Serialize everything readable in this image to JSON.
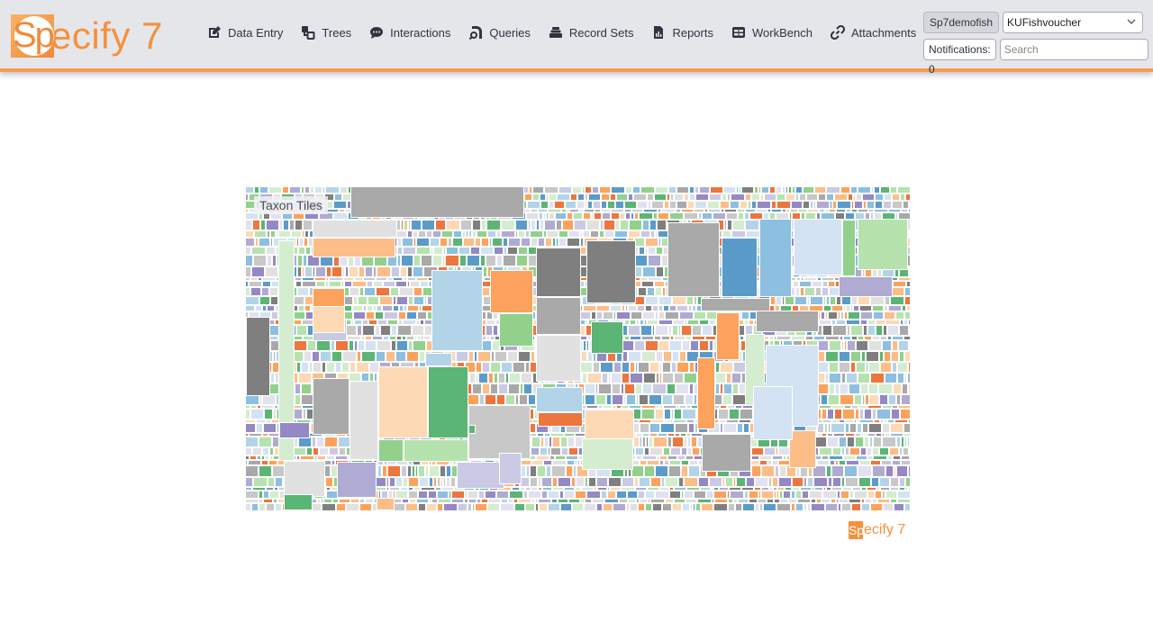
{
  "app": {
    "logo_prefix": "Sp",
    "logo_suffix": "ecify 7",
    "brand_color": "#f5913d"
  },
  "nav": {
    "items": [
      {
        "label": "Data Entry",
        "icon": "pencil-square-icon"
      },
      {
        "label": "Trees",
        "icon": "tree-nodes-icon"
      },
      {
        "label": "Interactions",
        "icon": "chat-bubble-icon"
      },
      {
        "label": "Queries",
        "icon": "search-document-icon"
      },
      {
        "label": "Record Sets",
        "icon": "stack-icon"
      },
      {
        "label": "Reports",
        "icon": "bar-chart-document-icon"
      },
      {
        "label": "WorkBench",
        "icon": "table-icon"
      },
      {
        "label": "Attachments",
        "icon": "link-icon"
      }
    ]
  },
  "user": {
    "username": "Sp7demofish",
    "collection": "KUFishvoucher",
    "notifications": "Notifications: 0",
    "search_placeholder": "Search"
  },
  "treemap": {
    "title": "Taxon Tiles",
    "palette": {
      "blue_dark": "#5b9bc9",
      "blue": "#8cbfe0",
      "blue_light": "#b3d4e8",
      "blue_pale": "#d3e3f3",
      "orange_dark": "#ec763d",
      "orange": "#fda25c",
      "orange_light": "#fdbd87",
      "orange_pale": "#fdd9b5",
      "green_dark": "#5bb574",
      "green": "#91d18c",
      "green_light": "#b6e2ae",
      "green_pale": "#d4edd0",
      "purple_dark": "#9489c4",
      "purple": "#b0abd3",
      "purple_light": "#cacae4",
      "purple_pale": "#e2e1ef",
      "gray_dark": "#7f7f7f",
      "gray": "#a9a9a9",
      "gray_light": "#c8c8c8",
      "gray_pale": "#e1e1e1"
    }
  },
  "footer": {
    "logo_prefix": "Sp",
    "logo_suffix": "ecify 7"
  }
}
